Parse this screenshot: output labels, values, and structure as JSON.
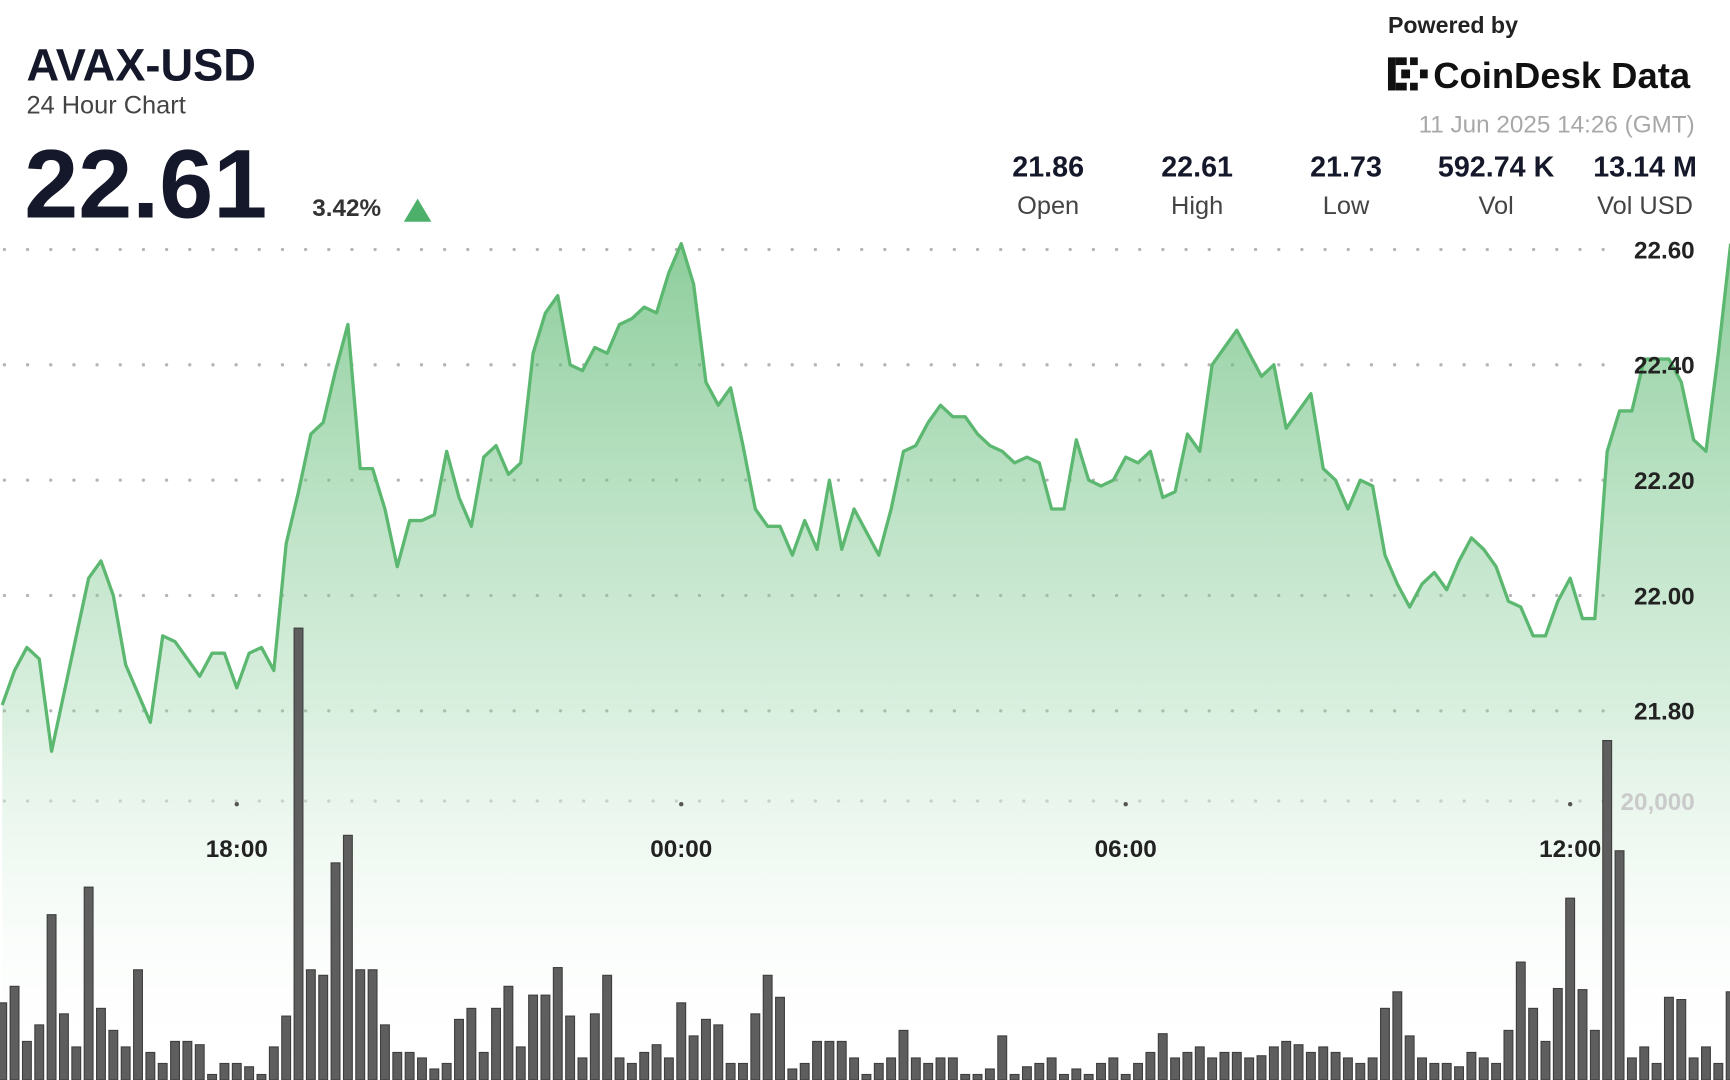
{
  "chart_data": {
    "type": "line",
    "title": "AVAX-USD",
    "subtitle": "24 Hour Chart",
    "price": 22.61,
    "change": "3.42%",
    "stats": [
      {
        "value": "21.86",
        "label": "Open"
      },
      {
        "value": "22.61",
        "label": "High"
      },
      {
        "value": "21.73",
        "label": "Low"
      },
      {
        "value": "592.74 K",
        "label": "Vol"
      },
      {
        "value": "13.14 M",
        "label": "Vol USD"
      }
    ],
    "powered_by": "Powered by",
    "brand": "CoinDesk Data",
    "timestamp": "11 Jun 2025 14:26 (GMT)",
    "categories": [
      null,
      null,
      null,
      null,
      null,
      null,
      null,
      null,
      null,
      null,
      null,
      null,
      null,
      null,
      null,
      null,
      null,
      null,
      null,
      "18:00",
      null,
      null,
      null,
      null,
      null,
      null,
      null,
      null,
      null,
      null,
      null,
      null,
      null,
      null,
      null,
      null,
      null,
      null,
      null,
      null,
      null,
      null,
      null,
      null,
      null,
      null,
      null,
      null,
      null,
      null,
      null,
      null,
      null,
      null,
      null,
      "00:00",
      null,
      null,
      null,
      null,
      null,
      null,
      null,
      null,
      null,
      null,
      null,
      null,
      null,
      null,
      null,
      null,
      null,
      null,
      null,
      null,
      null,
      null,
      null,
      null,
      null,
      null,
      null,
      null,
      null,
      null,
      null,
      null,
      null,
      null,
      null,
      "06:00",
      null,
      null,
      null,
      null,
      null,
      null,
      null,
      null,
      null,
      null,
      null,
      null,
      null,
      null,
      null,
      null,
      null,
      null,
      null,
      null,
      null,
      null,
      null,
      null,
      null,
      null,
      null,
      null,
      null,
      null,
      null,
      null,
      null,
      null,
      null,
      "12:00",
      null,
      null,
      null,
      null,
      null,
      null,
      null,
      null,
      null,
      null,
      null,
      null,
      null
    ],
    "series": [
      {
        "type": "line",
        "color": "#5cb870",
        "values": [
          21.81,
          21.87,
          21.91,
          21.89,
          21.73,
          21.83,
          21.93,
          22.03,
          22.06,
          22.0,
          21.88,
          21.83,
          21.78,
          21.93,
          21.92,
          21.89,
          21.86,
          21.9,
          21.9,
          21.84,
          21.9,
          21.91,
          21.87,
          22.09,
          22.18,
          22.28,
          22.3,
          22.39,
          22.47,
          22.22,
          22.22,
          22.15,
          22.05,
          22.13,
          22.13,
          22.14,
          22.25,
          22.17,
          22.12,
          22.24,
          22.26,
          22.21,
          22.23,
          22.42,
          22.49,
          22.52,
          22.4,
          22.39,
          22.43,
          22.42,
          22.47,
          22.48,
          22.5,
          22.49,
          22.56,
          22.61,
          22.54,
          22.37,
          22.33,
          22.36,
          22.26,
          22.15,
          22.12,
          22.12,
          22.07,
          22.13,
          22.08,
          22.2,
          22.08,
          22.15,
          22.11,
          22.07,
          22.15,
          22.25,
          22.26,
          22.3,
          22.33,
          22.31,
          22.31,
          22.28,
          22.26,
          22.25,
          22.23,
          22.24,
          22.23,
          22.15,
          22.15,
          22.27,
          22.2,
          22.19,
          22.2,
          22.24,
          22.23,
          22.25,
          22.17,
          22.18,
          22.28,
          22.25,
          22.4,
          22.43,
          22.46,
          22.42,
          22.38,
          22.4,
          22.29,
          22.32,
          22.35,
          22.22,
          22.2,
          22.15,
          22.2,
          22.19,
          22.07,
          22.02,
          21.98,
          22.02,
          22.04,
          22.01,
          22.06,
          22.1,
          22.08,
          22.05,
          21.99,
          21.98,
          21.93,
          21.93,
          21.99,
          22.03,
          21.96,
          21.96,
          22.25,
          22.32,
          22.32,
          22.41,
          22.41,
          22.41,
          22.37,
          22.27,
          22.25,
          22.42,
          22.61
        ]
      },
      {
        "type": "bar",
        "axis": "y2",
        "color": "#5e5e5e",
        "values": [
          5530,
          6715,
          2765,
          3950,
          11850,
          4740,
          2370,
          13825,
          5135,
          3555,
          2370,
          7900,
          1975,
          1185,
          2765,
          2765,
          2528,
          395,
          1185,
          1185,
          948,
          395,
          2370,
          4582,
          32390,
          7900,
          7505,
          15563,
          17538,
          7900,
          7900,
          3950,
          1975,
          1975,
          1580,
          790,
          1185,
          4345,
          5135,
          1975,
          5135,
          6715,
          2370,
          6083,
          6083,
          8058,
          4582,
          1580,
          4740,
          7505,
          1580,
          1185,
          1975,
          2528,
          1580,
          5530,
          3160,
          4345,
          3950,
          1185,
          1185,
          4740,
          7505,
          5925,
          790,
          1185,
          2765,
          2765,
          2765,
          1580,
          395,
          1185,
          1580,
          3555,
          1580,
          1185,
          1580,
          1580,
          395,
          395,
          790,
          3160,
          395,
          948,
          1185,
          1580,
          395,
          790,
          395,
          1185,
          1580,
          395,
          1185,
          1975,
          3318,
          1580,
          1975,
          2370,
          1580,
          1975,
          1975,
          1580,
          1738,
          2370,
          2765,
          2528,
          1975,
          2370,
          1975,
          1580,
          1185,
          1580,
          5135,
          6320,
          3160,
          1580,
          1185,
          1185,
          948,
          1975,
          1580,
          1185,
          3555,
          8453,
          5135,
          2765,
          6557,
          13035,
          6478,
          3555,
          24332,
          16432,
          1580,
          2370,
          1185,
          5925,
          5767,
          1580,
          2370,
          1185,
          6320
        ]
      }
    ],
    "ylim": [
      21.16,
      22.65
    ],
    "yticks": [
      {
        "value": 21.8,
        "label": "21.80"
      },
      {
        "value": 22.0,
        "label": "22.00"
      },
      {
        "value": 22.2,
        "label": "22.20"
      },
      {
        "value": 22.4,
        "label": "22.40"
      },
      {
        "value": 22.6,
        "label": "22.60"
      }
    ],
    "y2lim": [
      0,
      61600
    ],
    "y2ticks": [
      {
        "value": 20000,
        "label": "20,000"
      }
    ],
    "grid": true
  }
}
